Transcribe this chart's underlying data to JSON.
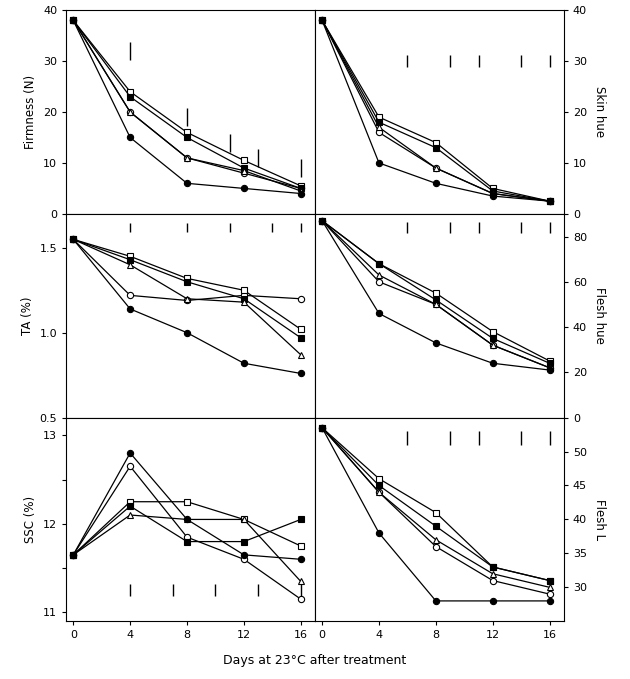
{
  "x": [
    0,
    4,
    8,
    12,
    16
  ],
  "firmness": {
    "open_circle": [
      38,
      20,
      11,
      8.0,
      5.0
    ],
    "open_square": [
      38,
      24,
      16,
      10.5,
      5.5
    ],
    "filled_square": [
      38,
      23,
      15,
      9.0,
      5.0
    ],
    "open_triangle": [
      38,
      20,
      11,
      8.5,
      4.5
    ],
    "filled_circle": [
      38,
      15,
      6,
      5.0,
      4.0
    ]
  },
  "skin_hue": {
    "open_circle": [
      38,
      16,
      9,
      4.0,
      2.5
    ],
    "open_square": [
      38,
      19,
      14,
      5.0,
      2.5
    ],
    "filled_square": [
      38,
      18,
      13,
      4.5,
      2.5
    ],
    "open_triangle": [
      38,
      17,
      9,
      4.0,
      2.5
    ],
    "filled_circle": [
      38,
      10,
      6,
      3.5,
      2.5
    ]
  },
  "TA": {
    "open_circle": [
      1.55,
      1.22,
      1.19,
      1.22,
      1.2
    ],
    "open_square": [
      1.55,
      1.45,
      1.32,
      1.25,
      1.02
    ],
    "filled_square": [
      1.55,
      1.43,
      1.3,
      1.2,
      0.97
    ],
    "open_triangle": [
      1.55,
      1.4,
      1.2,
      1.18,
      0.87
    ],
    "filled_circle": [
      1.55,
      1.14,
      1.0,
      0.82,
      0.76
    ]
  },
  "flesh_hue": {
    "open_circle": [
      87,
      60,
      50,
      32,
      22
    ],
    "open_square": [
      87,
      68,
      55,
      38,
      25
    ],
    "filled_square": [
      87,
      68,
      52,
      35,
      24
    ],
    "open_triangle": [
      87,
      63,
      50,
      32,
      22
    ],
    "filled_circle": [
      87,
      46,
      33,
      24,
      21
    ]
  },
  "SSC": {
    "open_circle": [
      11.65,
      12.65,
      11.85,
      11.6,
      11.15
    ],
    "open_square": [
      11.65,
      12.25,
      12.25,
      12.05,
      11.75
    ],
    "filled_square": [
      11.65,
      12.2,
      11.8,
      11.8,
      12.05
    ],
    "open_triangle": [
      11.65,
      12.1,
      12.05,
      12.05,
      11.35
    ],
    "filled_circle": [
      11.65,
      12.8,
      12.05,
      11.65,
      11.6
    ]
  },
  "flesh_L": {
    "open_circle": [
      53.5,
      44,
      36,
      31,
      29
    ],
    "open_square": [
      53.5,
      46,
      41,
      33,
      31
    ],
    "filled_square": [
      53.5,
      45,
      39,
      33,
      31
    ],
    "open_triangle": [
      53.5,
      44,
      37,
      32,
      30
    ],
    "filled_circle": [
      53.5,
      38,
      28,
      28,
      28
    ]
  },
  "lsd_firmness_x": [
    4,
    8,
    11,
    13,
    16
  ],
  "lsd_firmness_y": [
    32,
    19,
    14,
    11,
    9
  ],
  "lsd_firmness_size": 3.5,
  "lsd_skin_hue_x": [
    6,
    9,
    11,
    14,
    16
  ],
  "lsd_skin_hue_y": [
    30,
    30,
    30,
    30,
    30
  ],
  "lsd_skin_hue_size": 2.5,
  "lsd_TA_x": [
    4,
    8,
    11,
    14,
    16
  ],
  "lsd_TA_y": [
    1.62,
    1.62,
    1.62,
    1.62,
    1.62
  ],
  "lsd_TA_size": 0.055,
  "lsd_flesh_hue_x": [
    6,
    9,
    11,
    14,
    16
  ],
  "lsd_flesh_hue_y": [
    84,
    84,
    84,
    84,
    84
  ],
  "lsd_flesh_hue_size": 5.0,
  "lsd_SSC_x": [
    4,
    7,
    10,
    13,
    16
  ],
  "lsd_SSC_y": [
    11.25,
    11.25,
    11.25,
    11.25,
    11.25
  ],
  "lsd_SSC_size": 0.14,
  "lsd_flesh_L_x": [
    6,
    9,
    11,
    14,
    16
  ],
  "lsd_flesh_L_y": [
    52,
    52,
    52,
    52,
    52
  ],
  "lsd_flesh_L_size": 2.0,
  "xlabel": "Days at 23°C after treatment",
  "ylabel_firmness": "Firmness (N)",
  "ylabel_TA": "TA (%)",
  "ylabel_SSC": "SSC (%)",
  "ylabel_skin_hue": "Skin hue",
  "ylabel_flesh_hue": "Flesh hue",
  "ylabel_flesh_L": "Flesh L",
  "ylim_firmness": [
    0,
    40
  ],
  "ylim_skin_hue": [
    0,
    40
  ],
  "ylim_TA": [
    0.5,
    1.7
  ],
  "ylim_flesh_hue": [
    0,
    90
  ],
  "ylim_SSC": [
    10.9,
    13.2
  ],
  "ylim_flesh_L": [
    25,
    55
  ],
  "yticks_firmness": [
    0,
    10,
    20,
    30,
    40
  ],
  "yticks_skin_hue": [
    0,
    10,
    20,
    30,
    40
  ],
  "yticks_TA": [
    0.5,
    1.0,
    1.5
  ],
  "yticks_flesh_hue": [
    0,
    20,
    40,
    60,
    80
  ],
  "yticks_SSC": [
    11.0,
    11.5,
    12.0,
    12.5,
    13.0
  ],
  "yticks_flesh_L": [
    30,
    35,
    40,
    45,
    50
  ],
  "yticklabels_firmness": [
    "0",
    "10",
    "20",
    "30",
    "40"
  ],
  "yticklabels_skin_hue": [
    "0",
    "10",
    "20",
    "30",
    "40"
  ],
  "yticklabels_TA": [
    "0.5",
    "1.0",
    "1.5"
  ],
  "yticklabels_flesh_hue": [
    "0",
    "20",
    "40",
    "60",
    "80"
  ],
  "yticklabels_SSC": [
    "11",
    "",
    "12",
    "",
    "13"
  ],
  "yticklabels_flesh_L": [
    "30",
    "35",
    "40",
    "45",
    "50"
  ]
}
